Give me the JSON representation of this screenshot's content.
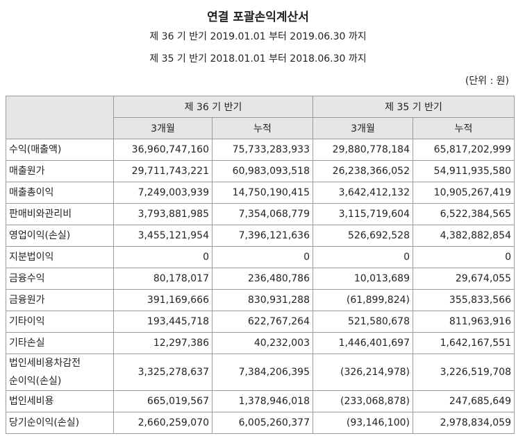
{
  "header": {
    "title": "연결 포괄손익계산서",
    "period_current": "제 36 기 반기 2019.01.01 부터 2019.06.30 까지",
    "period_prior": "제 35 기 반기 2018.01.01 부터 2018.06.30 까지",
    "unit": "(단위 : 원)"
  },
  "table": {
    "groups": [
      "제 36 기 반기",
      "제 35 기 반기"
    ],
    "subheaders": [
      "3개월",
      "누적",
      "3개월",
      "누적"
    ],
    "rows": [
      [
        "수익(매출액)",
        "36,960,747,160",
        "75,733,283,933",
        "29,880,778,184",
        "65,817,202,999"
      ],
      [
        "매출원가",
        "29,711,743,221",
        "60,983,093,518",
        "26,238,366,052",
        "54,911,935,580"
      ],
      [
        "매출총이익",
        "7,249,003,939",
        "14,750,190,415",
        "3,642,412,132",
        "10,905,267,419"
      ],
      [
        "판매비와관리비",
        "3,793,881,985",
        "7,354,068,779",
        "3,115,719,604",
        "6,522,384,565"
      ],
      [
        "영업이익(손실)",
        "3,455,121,954",
        "7,396,121,636",
        "526,692,528",
        "4,382,882,854"
      ],
      [
        "지분법이익",
        "0",
        "0",
        "0",
        "0"
      ],
      [
        "금융수익",
        "80,178,017",
        "236,480,786",
        "10,013,689",
        "29,674,055"
      ],
      [
        "금융원가",
        "391,169,666",
        "830,931,288",
        "(61,899,824)",
        "355,833,566"
      ],
      [
        "기타이익",
        "193,445,718",
        "622,767,264",
        "521,580,678",
        "811,963,916"
      ],
      [
        "기타손실",
        "12,297,386",
        "40,232,003",
        "1,446,401,697",
        "1,642,167,551"
      ],
      [
        "법인세비용차감전\n순이익(손실)",
        "3,325,278,637",
        "7,384,206,395",
        "(326,214,978)",
        "3,226,519,708"
      ],
      [
        "법인세비용",
        "665,019,567",
        "1,378,946,018",
        "(233,068,878)",
        "247,685,649"
      ],
      [
        "당기순이익(손실)",
        "2,660,259,070",
        "6,005,260,377",
        "(93,146,100)",
        "2,978,834,059"
      ]
    ]
  }
}
